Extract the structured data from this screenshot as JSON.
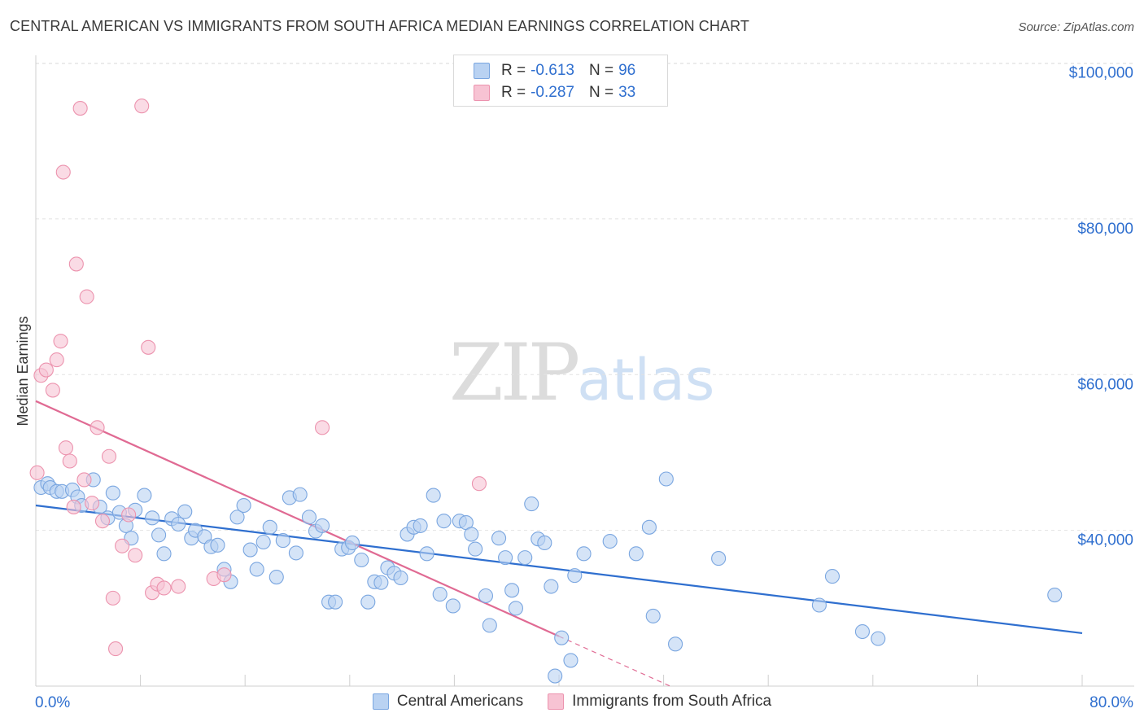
{
  "header": {
    "title": "CENTRAL AMERICAN VS IMMIGRANTS FROM SOUTH AFRICA MEDIAN EARNINGS CORRELATION CHART",
    "source": "Source: ZipAtlas.com"
  },
  "watermark": {
    "zip": "ZIP",
    "atlas": "atlas"
  },
  "legend": {
    "rows": [
      {
        "r_label": "R =",
        "r_value": "-0.613",
        "n_label": "N =",
        "n_value": "96"
      },
      {
        "r_label": "R =",
        "r_value": "-0.287",
        "n_label": "N =",
        "n_value": "33"
      }
    ]
  },
  "bottom_legend": {
    "series1": "Central Americans",
    "series2": "Immigrants from South Africa"
  },
  "colors": {
    "blue_fill": "#b9d2f2",
    "blue_stroke": "#7aa6e0",
    "blue_line": "#2f6fcf",
    "pink_fill": "#f7c3d3",
    "pink_stroke": "#ec93ae",
    "pink_line": "#e06a93",
    "axis_text": "#2f6fcf",
    "grid": "#e2e2e2"
  },
  "chart_data": {
    "type": "scatter",
    "title": "CENTRAL AMERICAN VS IMMIGRANTS FROM SOUTH AFRICA MEDIAN EARNINGS CORRELATION CHART",
    "xlabel": "",
    "ylabel": "Median Earnings",
    "xlim": [
      0,
      80
    ],
    "ylim": [
      20000,
      101000
    ],
    "x_tick_labels": [
      "0.0%",
      "80.0%"
    ],
    "y_ticks": [
      40000,
      60000,
      80000,
      100000
    ],
    "y_tick_labels": [
      "$40,000",
      "$60,000",
      "$80,000",
      "$100,000"
    ],
    "grid": true,
    "legend_position": "top-center",
    "series": [
      {
        "name": "Central Americans",
        "color": "#7aa6e0",
        "trend": {
          "x": [
            0,
            80
          ],
          "y": [
            43200,
            26800
          ]
        },
        "points": [
          [
            0.4,
            45500
          ],
          [
            0.9,
            46000
          ],
          [
            1.1,
            45500
          ],
          [
            1.6,
            45000
          ],
          [
            2.0,
            45000
          ],
          [
            2.8,
            45200
          ],
          [
            3.2,
            44300
          ],
          [
            3.5,
            43200
          ],
          [
            4.4,
            46500
          ],
          [
            4.9,
            43000
          ],
          [
            5.5,
            41600
          ],
          [
            5.9,
            44800
          ],
          [
            6.4,
            42300
          ],
          [
            6.9,
            40600
          ],
          [
            7.3,
            39000
          ],
          [
            7.6,
            42600
          ],
          [
            8.3,
            44500
          ],
          [
            8.9,
            41600
          ],
          [
            9.4,
            39400
          ],
          [
            9.8,
            37000
          ],
          [
            10.4,
            41500
          ],
          [
            10.9,
            40800
          ],
          [
            11.4,
            42400
          ],
          [
            11.9,
            39000
          ],
          [
            12.2,
            40000
          ],
          [
            12.9,
            39200
          ],
          [
            13.4,
            37900
          ],
          [
            13.9,
            38100
          ],
          [
            14.4,
            35000
          ],
          [
            14.9,
            33400
          ],
          [
            15.4,
            41700
          ],
          [
            15.9,
            43200
          ],
          [
            16.4,
            37500
          ],
          [
            16.9,
            35000
          ],
          [
            17.4,
            38500
          ],
          [
            17.9,
            40400
          ],
          [
            18.4,
            34000
          ],
          [
            18.9,
            38700
          ],
          [
            19.4,
            44200
          ],
          [
            19.9,
            37100
          ],
          [
            20.2,
            44600
          ],
          [
            20.9,
            41700
          ],
          [
            21.4,
            39900
          ],
          [
            21.9,
            40600
          ],
          [
            22.4,
            30800
          ],
          [
            22.9,
            30800
          ],
          [
            23.4,
            37600
          ],
          [
            23.9,
            37800
          ],
          [
            24.2,
            38400
          ],
          [
            24.9,
            36200
          ],
          [
            25.4,
            30800
          ],
          [
            25.9,
            33400
          ],
          [
            26.4,
            33300
          ],
          [
            26.9,
            35200
          ],
          [
            27.4,
            34500
          ],
          [
            27.9,
            33900
          ],
          [
            28.4,
            39500
          ],
          [
            28.9,
            40400
          ],
          [
            29.4,
            40600
          ],
          [
            29.9,
            37000
          ],
          [
            30.4,
            44500
          ],
          [
            30.9,
            31800
          ],
          [
            31.2,
            41200
          ],
          [
            31.9,
            30300
          ],
          [
            32.4,
            41200
          ],
          [
            32.9,
            41000
          ],
          [
            33.3,
            39500
          ],
          [
            33.6,
            37600
          ],
          [
            34.4,
            31600
          ],
          [
            34.7,
            27800
          ],
          [
            35.4,
            39000
          ],
          [
            35.9,
            36500
          ],
          [
            36.4,
            32300
          ],
          [
            36.7,
            30000
          ],
          [
            37.4,
            36500
          ],
          [
            37.9,
            43400
          ],
          [
            38.4,
            38900
          ],
          [
            38.9,
            38400
          ],
          [
            39.4,
            32800
          ],
          [
            39.7,
            21300
          ],
          [
            40.2,
            26200
          ],
          [
            40.9,
            23300
          ],
          [
            41.2,
            34200
          ],
          [
            41.9,
            37000
          ],
          [
            43.9,
            38600
          ],
          [
            45.9,
            37000
          ],
          [
            46.9,
            40400
          ],
          [
            47.2,
            29000
          ],
          [
            48.2,
            46600
          ],
          [
            48.9,
            25400
          ],
          [
            52.2,
            36400
          ],
          [
            59.9,
            30400
          ],
          [
            60.9,
            34100
          ],
          [
            63.2,
            27000
          ],
          [
            64.4,
            26100
          ],
          [
            77.9,
            31700
          ]
        ]
      },
      {
        "name": "Immigrants from South Africa",
        "color": "#ec93ae",
        "trend": {
          "x": [
            0,
            40
          ],
          "y": [
            56600,
            26400
          ]
        },
        "trend_dashed": {
          "x": [
            40,
            48.5
          ],
          "y": [
            26400,
            20000
          ]
        },
        "points": [
          [
            0.1,
            47400
          ],
          [
            0.4,
            59900
          ],
          [
            0.8,
            60600
          ],
          [
            1.3,
            58000
          ],
          [
            1.6,
            61900
          ],
          [
            1.9,
            64300
          ],
          [
            2.1,
            86000
          ],
          [
            2.3,
            50600
          ],
          [
            2.6,
            48900
          ],
          [
            2.9,
            43000
          ],
          [
            3.1,
            74200
          ],
          [
            3.4,
            94200
          ],
          [
            3.7,
            46500
          ],
          [
            3.9,
            70000
          ],
          [
            4.3,
            43500
          ],
          [
            4.7,
            53200
          ],
          [
            5.1,
            41200
          ],
          [
            5.6,
            49500
          ],
          [
            5.9,
            31300
          ],
          [
            6.1,
            24800
          ],
          [
            6.6,
            38000
          ],
          [
            7.1,
            42000
          ],
          [
            7.6,
            36800
          ],
          [
            8.1,
            94500
          ],
          [
            8.6,
            63500
          ],
          [
            8.9,
            32000
          ],
          [
            9.3,
            33100
          ],
          [
            9.8,
            32600
          ],
          [
            10.9,
            32800
          ],
          [
            13.6,
            33800
          ],
          [
            14.4,
            34300
          ],
          [
            21.9,
            53200
          ],
          [
            33.9,
            46000
          ]
        ]
      }
    ]
  }
}
